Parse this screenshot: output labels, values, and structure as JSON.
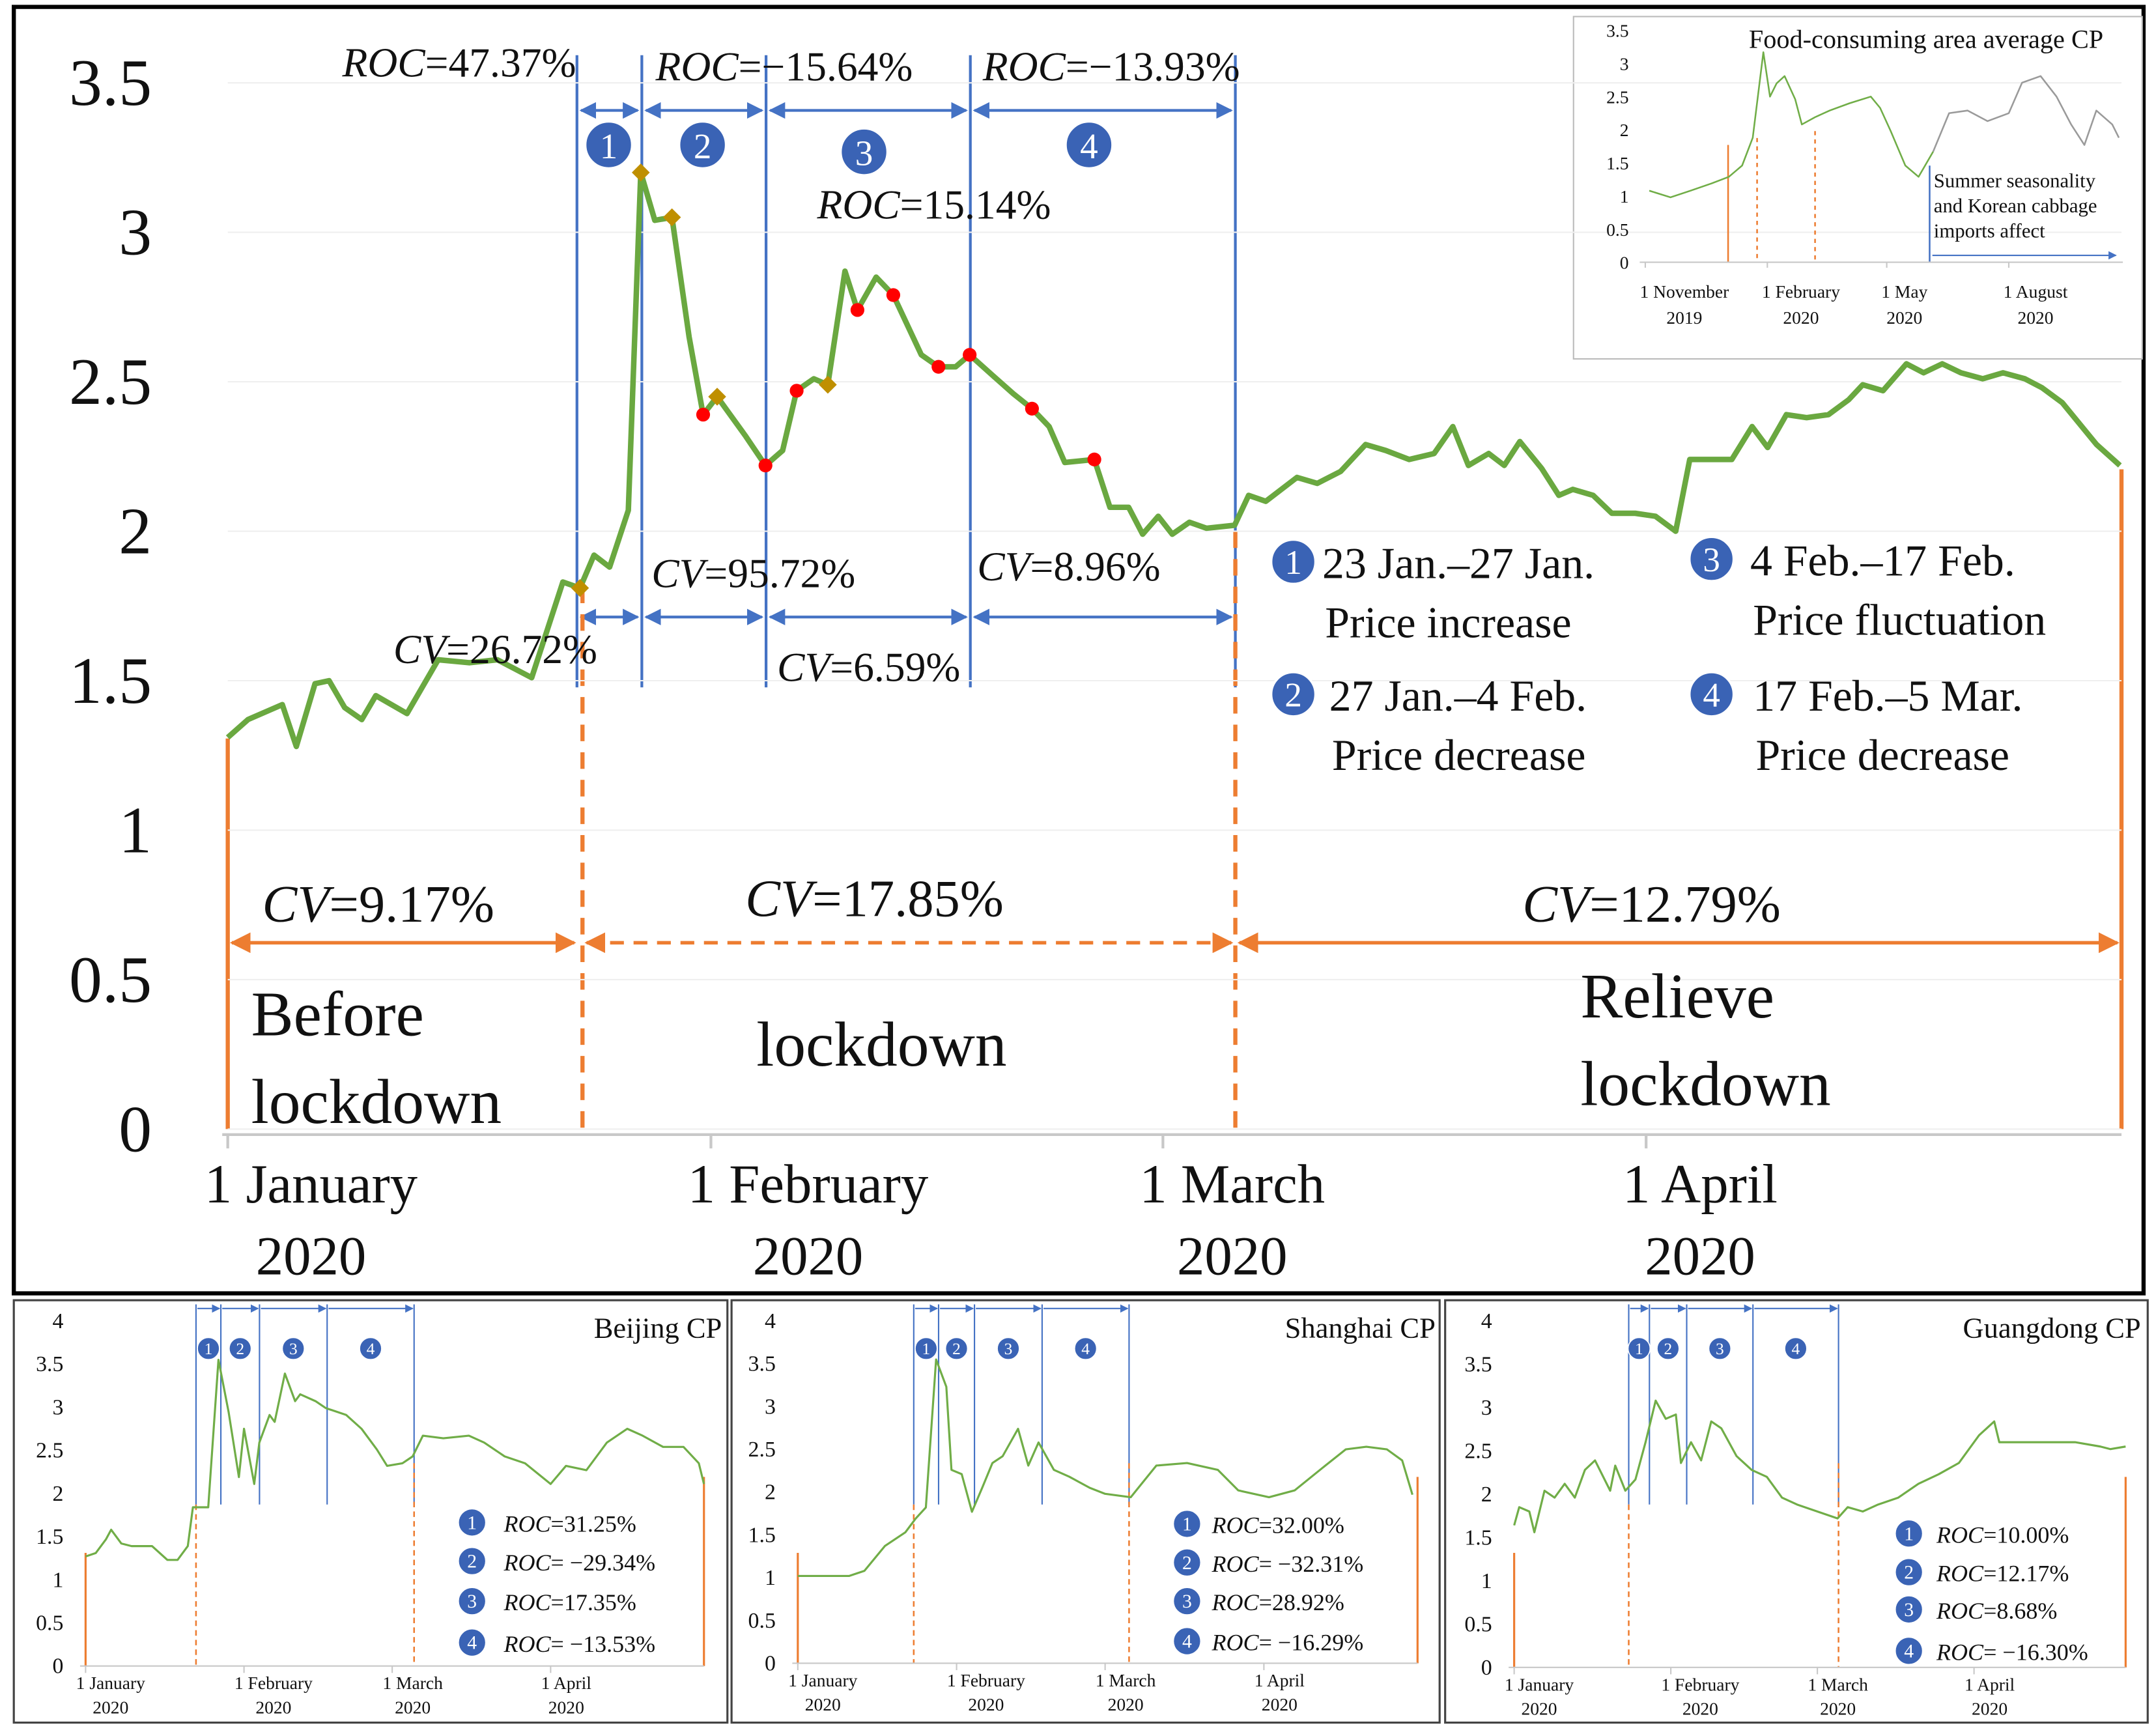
{
  "phase_numbers": [
    "1",
    "2",
    "3",
    "4"
  ],
  "chart_data": [
    {
      "type": "line",
      "xlim": [
        0,
        121.5
      ],
      "ylim": [
        0,
        3.5
      ],
      "yticks": [
        0,
        0.5,
        1,
        1.5,
        2,
        2.5,
        3,
        3.5
      ],
      "grid": true,
      "xticks": [
        {
          "value": 0,
          "label": "1 January\n2020"
        },
        {
          "value": 31,
          "label": "1 February\n2020"
        },
        {
          "value": 60,
          "label": "1 March\n2020"
        },
        {
          "value": 91,
          "label": "1 April\n2020"
        }
      ],
      "series": [
        {
          "color": "#6aa840",
          "x": [
            0,
            1.3,
            3.5,
            4.4,
            5.6,
            6.5,
            7.5,
            8.6,
            9.5,
            11.5,
            13.5,
            15.5,
            17.3,
            19.5,
            21.5,
            22.6,
            23.5,
            24.5,
            25.7,
            26.5,
            27.4,
            28.5,
            29.6,
            30.5,
            31.4,
            33.2,
            34.5,
            35.6,
            36.5,
            37.6,
            38.5,
            39.6,
            40.4,
            41.6,
            42.7,
            44.5,
            45.6,
            46.7,
            47.6,
            49.1,
            50.4,
            51.6,
            52.7,
            53.7,
            55.6,
            56.6,
            57.8,
            58.7,
            59.7,
            60.6,
            61.7,
            62.8,
            64.6,
            65.5,
            66.6,
            68.6,
            69.9,
            71.4,
            73.0,
            74.3,
            75.8,
            77.4,
            78.6,
            79.6,
            80.9,
            81.9,
            82.9,
            84.3,
            85.4,
            86.3,
            87.6,
            88.8,
            90.3,
            91.6,
            92.9,
            93.8,
            95.1,
            96.5,
            97.8,
            98.8,
            100.0,
            101.3,
            102.7,
            104.0,
            104.9,
            106.2,
            107.7,
            108.8,
            110.0,
            111.2,
            112.6,
            113.9,
            115.3,
            116.4,
            117.7,
            119.9,
            121.4
          ],
          "values": [
            1.31,
            1.37,
            1.42,
            1.28,
            1.49,
            1.5,
            1.41,
            1.37,
            1.45,
            1.39,
            1.57,
            1.56,
            1.57,
            1.51,
            1.83,
            1.81,
            1.92,
            1.88,
            2.07,
            3.2,
            3.04,
            3.05,
            2.65,
            2.39,
            2.45,
            2.32,
            2.22,
            2.27,
            2.47,
            2.51,
            2.49,
            2.87,
            2.74,
            2.85,
            2.79,
            2.59,
            2.55,
            2.55,
            2.59,
            2.52,
            2.46,
            2.41,
            2.35,
            2.23,
            2.24,
            2.08,
            2.08,
            1.99,
            2.05,
            1.99,
            2.03,
            2.01,
            2.02,
            2.12,
            2.1,
            2.18,
            2.16,
            2.2,
            2.29,
            2.27,
            2.24,
            2.26,
            2.35,
            2.22,
            2.26,
            2.22,
            2.3,
            2.21,
            2.12,
            2.14,
            2.12,
            2.06,
            2.06,
            2.05,
            2.0,
            2.24,
            2.24,
            2.24,
            2.35,
            2.28,
            2.39,
            2.38,
            2.39,
            2.44,
            2.49,
            2.47,
            2.56,
            2.53,
            2.56,
            2.53,
            2.51,
            2.53,
            2.51,
            2.48,
            2.43,
            2.29,
            2.22
          ]
        }
      ],
      "markers": [
        {
          "shape": "diamond",
          "color": "#bf8f00",
          "x": [
            22.6,
            26.5,
            28.5,
            31.4,
            38.5
          ],
          "values": [
            1.81,
            3.2,
            3.05,
            2.45,
            2.49
          ]
        },
        {
          "shape": "circle",
          "color": "#ff0000",
          "x": [
            30.5,
            34.5,
            36.5,
            40.4,
            42.7,
            45.6,
            47.6,
            51.6,
            55.6
          ],
          "values": [
            2.39,
            2.22,
            2.47,
            2.74,
            2.79,
            2.55,
            2.59,
            2.41,
            2.24
          ]
        }
      ],
      "annotations": [
        {
          "italic": "ROC",
          "text": "=47.37%"
        },
        {
          "italic": "ROC",
          "text": "=−15.64%"
        },
        {
          "italic": "ROC",
          "text": "=−13.93%"
        },
        {
          "italic": "ROC",
          "text": "=15.14%"
        },
        {
          "italic": "CV",
          "text": "=26.72%"
        },
        {
          "italic": "CV",
          "text": "=95.72%"
        },
        {
          "italic": "CV",
          "text": "=6.59%"
        },
        {
          "italic": "CV",
          "text": "=8.96%"
        },
        {
          "italic": "CV",
          "text": "=9.17%"
        },
        {
          "italic": "CV",
          "text": "=17.85%"
        },
        {
          "italic": "CV",
          "text": "=12.79%"
        }
      ],
      "periods": [
        "Before\nlockdown",
        "lockdown",
        "Relieve\nlockdown"
      ],
      "phase_legend": [
        {
          "dates": "23 Jan.–27 Jan.",
          "trend": "Price increase"
        },
        {
          "dates": "27 Jan.–4 Feb.",
          "trend": "Price decrease"
        },
        {
          "dates": "4 Feb.–17 Feb.",
          "trend": "Price fluctuation"
        },
        {
          "dates": "17 Feb.–5 Mar.",
          "trend": "Price decrease"
        }
      ]
    },
    {
      "type": "line",
      "title": "Beijing CP",
      "xlim": [
        0,
        121
      ],
      "ylim": [
        0,
        4
      ],
      "yticks": [
        0,
        0.5,
        1,
        1.5,
        2,
        2.5,
        3,
        3.5,
        4
      ],
      "xticks": [
        {
          "value": 0,
          "label": "1 January\n2020"
        },
        {
          "value": 31,
          "label": "1 February\n2020"
        },
        {
          "value": 60,
          "label": "1 March\n2020"
        },
        {
          "value": 91,
          "label": "1 April\n2020"
        }
      ],
      "series": [
        {
          "color": "#70ad47",
          "x": [
            0,
            2,
            4,
            5,
            7,
            9,
            13,
            16,
            18,
            20,
            21,
            24,
            26,
            28,
            30,
            31,
            33,
            34,
            36,
            37,
            39,
            41,
            42,
            45,
            47,
            51,
            54,
            57,
            59,
            62,
            64,
            66,
            70,
            75,
            78,
            82,
            86,
            91,
            94,
            98,
            102,
            106,
            109,
            113,
            117,
            120,
            121
          ],
          "values": [
            1.27,
            1.31,
            1.47,
            1.58,
            1.42,
            1.39,
            1.39,
            1.23,
            1.23,
            1.39,
            1.84,
            1.84,
            3.55,
            2.94,
            2.19,
            2.75,
            2.11,
            2.59,
            2.91,
            2.83,
            3.39,
            3.07,
            3.15,
            3.07,
            2.99,
            2.91,
            2.75,
            2.51,
            2.32,
            2.35,
            2.43,
            2.67,
            2.64,
            2.67,
            2.59,
            2.43,
            2.35,
            2.11,
            2.32,
            2.27,
            2.59,
            2.75,
            2.67,
            2.54,
            2.54,
            2.35,
            2.11
          ]
        }
      ],
      "annotations": [
        {
          "italic": "ROC",
          "text": "=31.25%"
        },
        {
          "italic": "ROC",
          "text": "= −29.34%"
        },
        {
          "italic": "ROC",
          "text": "=17.35%"
        },
        {
          "italic": "ROC",
          "text": "= −13.53%"
        }
      ]
    },
    {
      "type": "line",
      "title": "Shanghai CP",
      "xlim": [
        0,
        121
      ],
      "ylim": [
        0,
        4
      ],
      "yticks": [
        0,
        0.5,
        1,
        1.5,
        2,
        2.5,
        3,
        3.5,
        4
      ],
      "xticks": [
        {
          "value": 0,
          "label": "1 January\n2020"
        },
        {
          "value": 31,
          "label": "1 February\n2020"
        },
        {
          "value": 60,
          "label": "1 March\n2020"
        },
        {
          "value": 91,
          "label": "1 April\n2020"
        }
      ],
      "series": [
        {
          "color": "#70ad47",
          "x": [
            0,
            5,
            10,
            13,
            17,
            21,
            23,
            25,
            27,
            29,
            30,
            32,
            34,
            36,
            38,
            40,
            43,
            45,
            47,
            50,
            53,
            57,
            60,
            65,
            70,
            76,
            82,
            86,
            92,
            97,
            103,
            107,
            111,
            115,
            118,
            120
          ],
          "values": [
            1.02,
            1.02,
            1.02,
            1.08,
            1.37,
            1.53,
            1.69,
            1.82,
            3.55,
            3.23,
            2.26,
            2.21,
            1.77,
            2.05,
            2.34,
            2.42,
            2.74,
            2.31,
            2.58,
            2.26,
            2.18,
            2.05,
            1.98,
            1.94,
            2.31,
            2.34,
            2.26,
            2.02,
            1.94,
            2.02,
            2.31,
            2.5,
            2.53,
            2.5,
            2.37,
            1.97
          ]
        }
      ],
      "annotations": [
        {
          "italic": "ROC",
          "text": "=32.00%"
        },
        {
          "italic": "ROC",
          "text": "= −32.31%"
        },
        {
          "italic": "ROC",
          "text": "=28.92%"
        },
        {
          "italic": "ROC",
          "text": "= −16.29%"
        }
      ]
    },
    {
      "type": "line",
      "title": "Guangdong CP",
      "xlim": [
        0,
        121
      ],
      "ylim": [
        0,
        4
      ],
      "yticks": [
        0,
        0.5,
        1,
        1.5,
        2,
        2.5,
        3,
        3.5,
        4
      ],
      "xticks": [
        {
          "value": 0,
          "label": "1 January\n2020"
        },
        {
          "value": 31,
          "label": "1 February\n2020"
        },
        {
          "value": 60,
          "label": "1 March\n2020"
        },
        {
          "value": 91,
          "label": "1 April\n2020"
        }
      ],
      "series": [
        {
          "color": "#70ad47",
          "x": [
            0,
            1,
            3,
            4,
            6,
            8,
            10,
            12,
            14,
            16,
            19,
            20,
            22,
            24,
            26,
            28,
            30,
            32,
            33,
            35,
            37,
            39,
            41,
            44,
            47,
            50,
            53,
            56,
            60,
            64,
            66,
            69,
            72,
            76,
            80,
            84,
            88,
            92,
            95,
            96,
            102,
            107,
            111,
            116,
            118,
            121
          ],
          "values": [
            1.64,
            1.85,
            1.8,
            1.56,
            2.04,
            1.96,
            2.12,
            1.96,
            2.28,
            2.39,
            2.04,
            2.33,
            2.04,
            2.17,
            2.6,
            3.08,
            2.87,
            2.92,
            2.36,
            2.6,
            2.39,
            2.84,
            2.76,
            2.44,
            2.28,
            2.2,
            1.96,
            1.88,
            1.8,
            1.72,
            1.85,
            1.8,
            1.88,
            1.96,
            2.12,
            2.23,
            2.36,
            2.68,
            2.84,
            2.6,
            2.6,
            2.6,
            2.6,
            2.55,
            2.52,
            2.55
          ]
        }
      ],
      "annotations": [
        {
          "italic": "ROC",
          "text": "=10.00%"
        },
        {
          "italic": "ROC",
          "text": "=12.17%"
        },
        {
          "italic": "ROC",
          "text": "=8.68%"
        },
        {
          "italic": "ROC",
          "text": "= −16.30%"
        }
      ]
    },
    {
      "type": "line",
      "title": "Food-consuming area average CP",
      "note": "Summer seasonality\nand Korean cabbage\nimports affect",
      "xlim": [
        0,
        360
      ],
      "ylim": [
        0,
        3.5
      ],
      "yticks": [
        0,
        0.5,
        1,
        1.5,
        2,
        2.5,
        3,
        3.5
      ],
      "xticks": [
        {
          "value": 0,
          "label": "1 November\n2019"
        },
        {
          "value": 92,
          "label": "1 February\n2020"
        },
        {
          "value": 182,
          "label": "1 May\n2020"
        },
        {
          "value": 274,
          "label": "1 August\n2020"
        }
      ],
      "series": [
        {
          "color": "#70ad47",
          "x": [
            3,
            19,
            34,
            50,
            63,
            73,
            81,
            89,
            94,
            99,
            105,
            113,
            118,
            128,
            139,
            154,
            170,
            177,
            185,
            196,
            206,
            217
          ],
          "values": [
            1.08,
            0.98,
            1.08,
            1.19,
            1.29,
            1.46,
            1.88,
            3.17,
            2.5,
            2.7,
            2.81,
            2.46,
            2.08,
            2.19,
            2.29,
            2.4,
            2.5,
            2.33,
            1.98,
            1.46,
            1.29,
            1.67
          ]
        },
        {
          "color": "#9a9a9a",
          "x": [
            217,
            229,
            243,
            258,
            274,
            284,
            298,
            310,
            321,
            331,
            340,
            352,
            357
          ],
          "values": [
            1.67,
            2.25,
            2.29,
            2.13,
            2.25,
            2.71,
            2.81,
            2.5,
            2.08,
            1.77,
            2.29,
            2.08,
            1.88
          ]
        }
      ]
    }
  ]
}
